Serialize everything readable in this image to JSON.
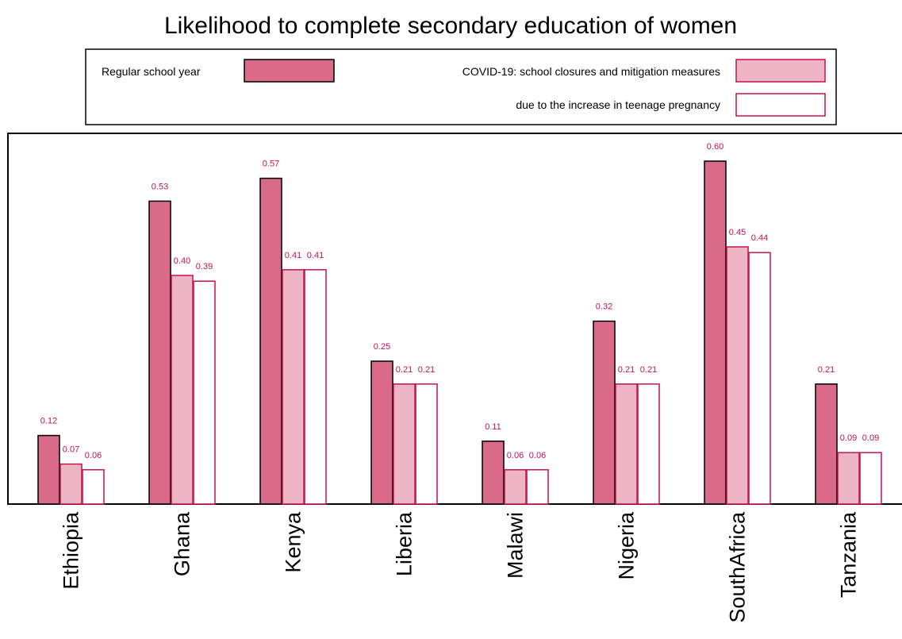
{
  "chart_data": {
    "type": "bar",
    "title": "Likelihood to complete secondary education of women",
    "categories": [
      "Ethiopia",
      "Ghana",
      "Kenya",
      "Liberia",
      "Malawi",
      "Nigeria",
      "SouthAfrica",
      "Tanzania"
    ],
    "series": [
      {
        "name": "Regular school year",
        "values": [
          0.12,
          0.53,
          0.57,
          0.25,
          0.11,
          0.32,
          0.6,
          0.21
        ],
        "fill": "#d96a88",
        "stroke": "#000000"
      },
      {
        "name": "COVID-19: school closures and mitigation measures",
        "values": [
          0.07,
          0.4,
          0.41,
          0.21,
          0.06,
          0.21,
          0.45,
          0.09
        ],
        "fill": "#edb4c3",
        "stroke": "#c4144a"
      },
      {
        "name": "due to the increase in teenage pregnancy",
        "values": [
          0.06,
          0.39,
          0.41,
          0.21,
          0.06,
          0.21,
          0.44,
          0.09
        ],
        "fill": "#ffffff",
        "stroke": "#c4144a"
      }
    ],
    "ylim": [
      0,
      0.62
    ],
    "grid": false,
    "legend_position": "top",
    "label_color": "#c4144a"
  }
}
